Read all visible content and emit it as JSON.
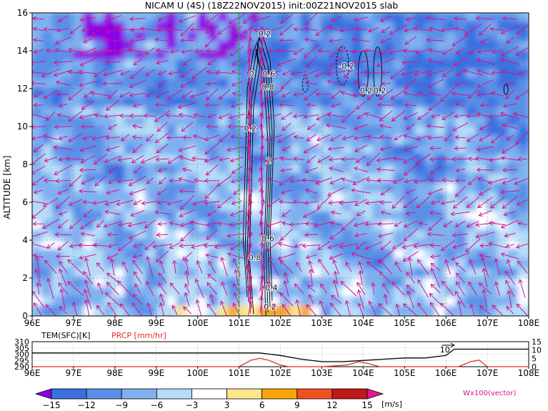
{
  "title": "NICAM U (4S) (18Z22NOV2015) init:00Z21NOV2015 slab",
  "chart_data": [
    {
      "type": "heatmap",
      "panel": "main",
      "ylabel": "ALTITUDE [km]",
      "x_ticks": [
        "96E",
        "97E",
        "98E",
        "99E",
        "100E",
        "101E",
        "102E",
        "103E",
        "104E",
        "105E",
        "106E",
        "107E",
        "108E"
      ],
      "y_ticks": [
        "0",
        "2",
        "4",
        "6",
        "8",
        "10",
        "12",
        "14",
        "16"
      ],
      "xlim": [
        96,
        108
      ],
      "ylim": [
        0,
        16
      ],
      "vertical_reference_line_lon": 101,
      "grid": true,
      "contour_labels": [
        {
          "text": "0.2",
          "lon": 101.62,
          "alt": 14.9
        },
        {
          "text": "0",
          "lon": 101.3,
          "alt": 12.8
        },
        {
          "text": "0.6",
          "lon": 101.72,
          "alt": 12.8
        },
        {
          "text": "0.8",
          "lon": 101.7,
          "alt": 12.1
        },
        {
          "text": "0.2",
          "lon": 101.27,
          "alt": 9.9
        },
        {
          "text": "2",
          "lon": 101.72,
          "alt": 8.2
        },
        {
          "text": "0.6",
          "lon": 101.7,
          "alt": 4.1
        },
        {
          "text": "0.8",
          "lon": 101.38,
          "alt": 3.1
        },
        {
          "text": "0.4",
          "lon": 101.78,
          "alt": 1.5
        },
        {
          "text": "0.2",
          "lon": 101.75,
          "alt": 0.5
        },
        {
          "text": "-0.2",
          "lon": 103.6,
          "alt": 13.2
        },
        {
          "text": "0.2",
          "lon": 104.07,
          "alt": 11.9
        },
        {
          "text": "0.2",
          "lon": 104.4,
          "alt": 11.9
        }
      ],
      "wind_field_dominant": "easterly (westward arrows) in most of the column; strong ascent near 101.5E"
    },
    {
      "type": "line",
      "panel": "surface",
      "series": [
        {
          "name": "TEM(SFC)[K]",
          "color": "#000000",
          "x": [
            96,
            97,
            98,
            99,
            100,
            101,
            101.5,
            102,
            102.5,
            103,
            103.5,
            104,
            104.5,
            105,
            105.5,
            106,
            106.2,
            107,
            108
          ],
          "values": [
            301,
            301,
            301,
            301,
            301,
            301,
            301,
            299,
            296,
            294,
            294,
            295,
            296,
            297,
            297,
            299,
            304,
            304,
            304
          ]
        },
        {
          "name": "PRCP [mm/hr]",
          "color": "#e0302a",
          "x": [
            96,
            100,
            101,
            101.3,
            101.5,
            101.7,
            102,
            102.2,
            103,
            103.6,
            103.9,
            104.1,
            104.4,
            105,
            106.3,
            106.6,
            106.8,
            107,
            108
          ],
          "values": [
            0,
            0,
            0,
            4,
            5,
            4,
            1,
            0,
            0,
            1,
            3,
            2,
            0,
            0,
            0,
            3,
            4,
            0,
            0
          ]
        }
      ],
      "x_ticks": [
        "96E",
        "97E",
        "98E",
        "99E",
        "100E",
        "101E",
        "102E",
        "103E",
        "104E",
        "105E",
        "106E",
        "107E",
        "108E"
      ],
      "y_left_ticks": [
        "290",
        "295",
        "300",
        "305",
        "310"
      ],
      "y_right_ticks": [
        "0",
        "5",
        "10",
        "15"
      ],
      "ylim_left": [
        290,
        310
      ],
      "ylim_right": [
        0,
        15
      ],
      "reference_arrow_label": "10"
    },
    {
      "type": "colorbar",
      "levels": [
        "-15",
        "-12",
        "-9",
        "-6",
        "-3",
        "3",
        "6",
        "9",
        "12",
        "15"
      ],
      "unit": "[m/s]",
      "colors": [
        "#8b00e6",
        "#3a6fe0",
        "#5a8fe8",
        "#7fb0f0",
        "#b5dcf8",
        "#ffffff",
        "#fde68a",
        "#f9a30a",
        "#f05020",
        "#c01818",
        "#e01a8f"
      ],
      "vector_label": "Wx100(vector)"
    }
  ]
}
